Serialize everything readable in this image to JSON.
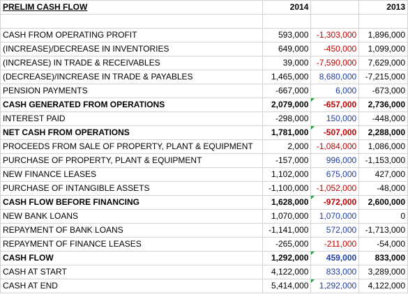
{
  "sheet": {
    "title": "PRELIM CASH FLOW",
    "col_2014": "2014",
    "col_2013": "2013",
    "colors": {
      "positive_diff": "#1f3da3",
      "negative_diff": "#c00000",
      "flag": "#1f9f3f"
    },
    "rows": [
      {
        "label": "CASH FROM OPERATING PROFIT",
        "v2014": "593,000",
        "diff": "-1,303,000",
        "v2013": "1,896,000",
        "bold": false,
        "flag": false
      },
      {
        "label": "(INCREASE)/DECREASE IN INVENTORIES",
        "v2014": "649,000",
        "diff": "-450,000",
        "v2013": "1,099,000",
        "bold": false,
        "flag": false
      },
      {
        "label": "(INCREASE) IN TRADE & RECEIVABLES",
        "v2014": "39,000",
        "diff": "-7,590,000",
        "v2013": "7,629,000",
        "bold": false,
        "flag": false
      },
      {
        "label": "(DECREASE)/INCREASE IN TRADE & PAYABLES",
        "v2014": "1,465,000",
        "diff": "8,680,000",
        "v2013": "-7,215,000",
        "bold": false,
        "flag": false
      },
      {
        "label": "PENSION PAYMENTS",
        "v2014": "-667,000",
        "diff": "6,000",
        "v2013": "-673,000",
        "bold": false,
        "flag": false
      },
      {
        "label": "CASH GENERATED FROM OPERATIONS",
        "v2014": "2,079,000",
        "diff": "-657,000",
        "v2013": "2,736,000",
        "bold": true,
        "flag": true
      },
      {
        "label": "INTEREST PAID",
        "v2014": "-298,000",
        "diff": "150,000",
        "v2013": "-448,000",
        "bold": false,
        "flag": false
      },
      {
        "label": "NET CASH FROM OPERATIONS",
        "v2014": "1,781,000",
        "diff": "-507,000",
        "v2013": "2,288,000",
        "bold": true,
        "flag": true
      },
      {
        "label": "PROCEEDS FROM SALE OF PROPERTY, PLANT & EQUIPMENT",
        "v2014": "2,000",
        "diff": "-1,084,000",
        "v2013": "1,086,000",
        "bold": false,
        "flag": false
      },
      {
        "label": "PURCHASE OF PROPERTY, PLANT & EQUIPMENT",
        "v2014": "-157,000",
        "diff": "996,000",
        "v2013": "-1,153,000",
        "bold": false,
        "flag": false
      },
      {
        "label": "NEW FINANCE LEASES",
        "v2014": "1,102,000",
        "diff": "675,000",
        "v2013": "427,000",
        "bold": false,
        "flag": false
      },
      {
        "label": "PURCHASE OF INTANGIBLE ASSETS",
        "v2014": "-1,100,000",
        "diff": "-1,052,000",
        "v2013": "-48,000",
        "bold": false,
        "flag": false
      },
      {
        "label": "CASH FLOW BEFORE FINANCING",
        "v2014": "1,628,000",
        "diff": "-972,000",
        "v2013": "2,600,000",
        "bold": true,
        "flag": true
      },
      {
        "label": "NEW BANK LOANS",
        "v2014": "1,070,000",
        "diff": "1,070,000",
        "v2013": "0",
        "bold": false,
        "flag": false
      },
      {
        "label": "REPAYMENT OF BANK LOANS",
        "v2014": "-1,141,000",
        "diff": "572,000",
        "v2013": "-1,713,000",
        "bold": false,
        "flag": false
      },
      {
        "label": "REPAYMENT OF FINANCE LEASES",
        "v2014": "-265,000",
        "diff": "-211,000",
        "v2013": "-54,000",
        "bold": false,
        "flag": false
      },
      {
        "label": "CASH FLOW",
        "v2014": "1,292,000",
        "diff": "459,000",
        "v2013": "833,000",
        "bold": true,
        "flag": true
      },
      {
        "label": "CASH AT START",
        "v2014": "4,122,000",
        "diff": "833,000",
        "v2013": "3,289,000",
        "bold": false,
        "flag": false
      },
      {
        "label": "CASH AT END",
        "v2014": "5,414,000",
        "diff": "1,292,000",
        "v2013": "4,122,000",
        "bold": false,
        "flag": true
      }
    ]
  }
}
